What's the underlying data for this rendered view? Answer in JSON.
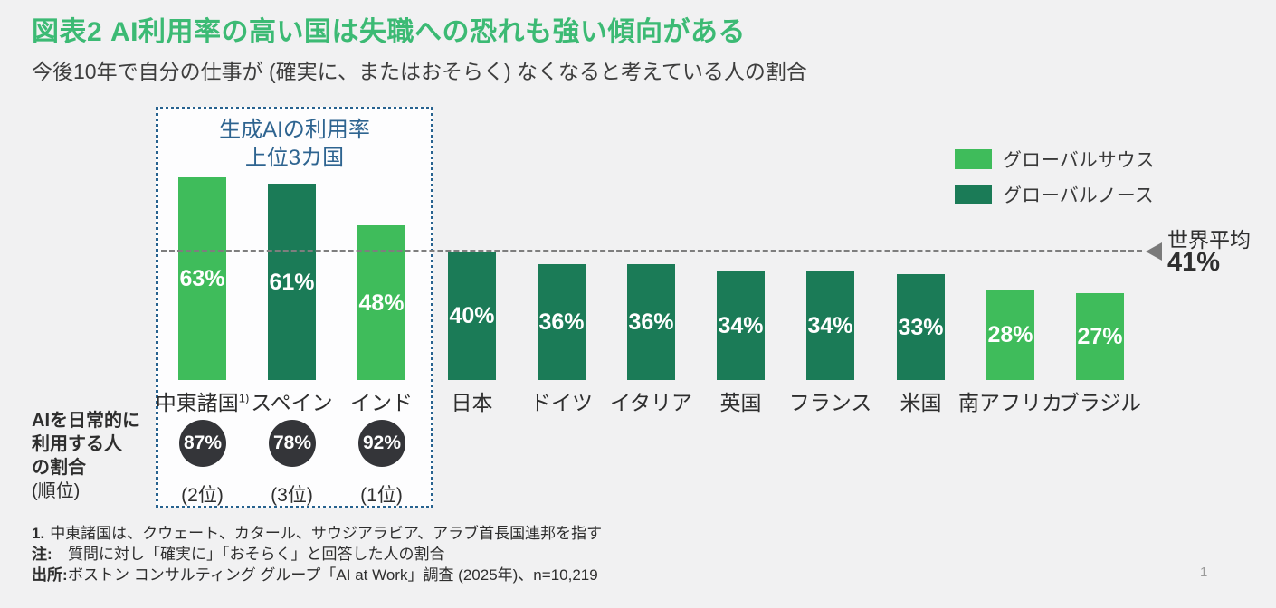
{
  "header": {
    "title": "図表2  AI利用率の高い国は失職への恐れも強い傾向がある",
    "subtitle": "今後10年で自分の仕事が (確実に、またはおそらく) なくなると考えている人の割合"
  },
  "colors": {
    "title_green": "#3CBA74",
    "global_south": "#3FBC5B",
    "global_north": "#1B7B57",
    "box_border_blue": "#27628F",
    "box_title_blue": "#2E6490",
    "circle_dark": "#343539",
    "dashed_line_gray": "#7E7E7E",
    "background": "#F1F1F2"
  },
  "legend": {
    "items": [
      {
        "label": "グローバルサウス",
        "group": "south",
        "color": "#3FBC5B"
      },
      {
        "label": "グローバルノース",
        "group": "north",
        "color": "#1B7B57"
      }
    ]
  },
  "highlight_box": {
    "title_line1": "生成AIの利用率",
    "title_line2": "上位3カ国"
  },
  "average_line": {
    "label": "世界平均",
    "value": "41%",
    "value_numeric": 41
  },
  "left_axis_note": {
    "line1": "AIを日常的に",
    "line2": "利用する人",
    "line3": "の割合",
    "sub": "(順位)"
  },
  "chart_data": {
    "type": "bar",
    "title": "図表2  AI利用率の高い国は失職への恐れも強い傾向がある",
    "subtitle": "今後10年で自分の仕事が (確実に、またはおそらく) なくなると考えている人の割合",
    "unit": "%",
    "ylim": [
      0,
      70
    ],
    "world_average": 41,
    "legend_position": "top-right",
    "categories": [
      "中東諸国",
      "スペイン",
      "インド",
      "日本",
      "ドイツ",
      "イタリア",
      "英国",
      "フランス",
      "米国",
      "南アフリカ",
      "ブラジル"
    ],
    "values": [
      63,
      61,
      48,
      40,
      36,
      36,
      34,
      34,
      33,
      28,
      27
    ],
    "bars": [
      {
        "label": "中東諸国",
        "label_sup": "1)",
        "value": 63,
        "display": "63%",
        "group": "south",
        "in_box": true,
        "ai_usage": "87%",
        "ai_rank": "(2位)"
      },
      {
        "label": "スペイン",
        "value": 61,
        "display": "61%",
        "group": "north",
        "in_box": true,
        "ai_usage": "78%",
        "ai_rank": "(3位)"
      },
      {
        "label": "インド",
        "value": 48,
        "display": "48%",
        "group": "south",
        "in_box": true,
        "ai_usage": "92%",
        "ai_rank": "(1位)"
      },
      {
        "label": "日本",
        "value": 40,
        "display": "40%",
        "group": "north"
      },
      {
        "label": "ドイツ",
        "value": 36,
        "display": "36%",
        "group": "north"
      },
      {
        "label": "イタリア",
        "value": 36,
        "display": "36%",
        "group": "north"
      },
      {
        "label": "英国",
        "value": 34,
        "display": "34%",
        "group": "north"
      },
      {
        "label": "フランス",
        "value": 34,
        "display": "34%",
        "group": "north"
      },
      {
        "label": "米国",
        "value": 33,
        "display": "33%",
        "group": "north"
      },
      {
        "label": "南アフリカ",
        "value": 28,
        "display": "28%",
        "group": "south"
      },
      {
        "label": "ブラジル",
        "value": 27,
        "display": "27%",
        "group": "south"
      }
    ]
  },
  "footnotes": [
    {
      "prefix": "1.",
      "text": "中東諸国は、クウェート、カタール、サウジアラビア、アラブ首長国連邦を指す"
    },
    {
      "prefix": "注:",
      "text": "質問に対し「確実に」「おそらく」と回答した人の割合"
    },
    {
      "prefix": "出所:",
      "text": "ボストン コンサルティング グループ「AI at Work」調査 (2025年)、n=10,219"
    }
  ],
  "page": {
    "page_number": "1"
  }
}
